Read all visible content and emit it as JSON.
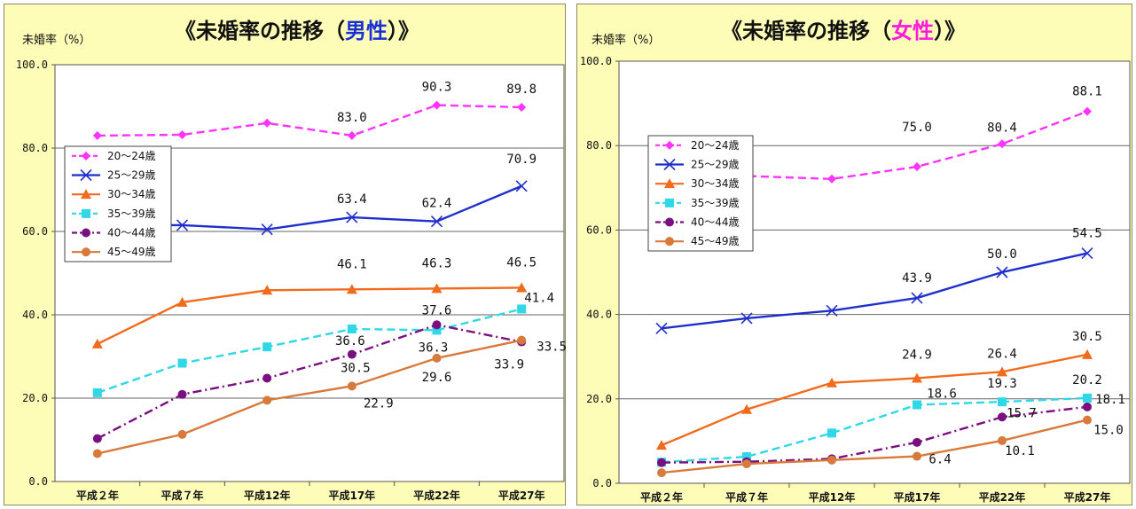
{
  "colors": {
    "panel_bg": "#fdfdb8",
    "plot_bg": "#ffffff",
    "male_word": "#1a2fd8",
    "female_word": "#ff1adc"
  },
  "chart_data": [
    {
      "type": "line",
      "title": {
        "prefix": "《未婚率の推移（",
        "highlight": "男性",
        "suffix": "）》"
      },
      "ylabel": "未婚率（%）",
      "ylim": [
        0,
        100
      ],
      "yticks": [
        "0.0",
        "20.0",
        "40.0",
        "60.0",
        "80.0",
        "100.0"
      ],
      "categories": [
        "平成２年",
        "平成７年",
        "平成12年",
        "平成17年",
        "平成22年",
        "平成27年"
      ],
      "grid": true,
      "legend_position": "left",
      "series": [
        {
          "name": "20～24歳",
          "color": "#ff33ff",
          "dash": "dashed",
          "marker": "diamond",
          "values": [
            83.0,
            83.2,
            86.0,
            83.0,
            90.3,
            89.8
          ],
          "labels": [
            "",
            "",
            "",
            "83.0",
            "90.3",
            "89.8"
          ]
        },
        {
          "name": "25～29歳",
          "color": "#1f2fcc",
          "dash": "solid",
          "marker": "x",
          "values": [
            61.5,
            61.5,
            60.5,
            63.4,
            62.4,
            70.9
          ],
          "labels": [
            "",
            "",
            "",
            "63.4",
            "62.4",
            "70.9"
          ]
        },
        {
          "name": "30～34歳",
          "color": "#f26b1d",
          "dash": "solid",
          "marker": "triangle",
          "values": [
            33.0,
            43.0,
            45.9,
            46.1,
            46.3,
            46.5
          ],
          "labels": [
            "",
            "",
            "",
            "46.1",
            "46.3",
            "46.5"
          ]
        },
        {
          "name": "35～39歳",
          "color": "#2ed8e6",
          "dash": "dashed",
          "marker": "square",
          "values": [
            21.3,
            28.4,
            32.3,
            36.6,
            36.3,
            41.4
          ],
          "labels": [
            "",
            "",
            "",
            "36.6",
            "36.3",
            "41.4"
          ]
        },
        {
          "name": "40～44歳",
          "color": "#7a0f80",
          "dash": "dashdot",
          "marker": "circle",
          "values": [
            10.3,
            20.9,
            24.8,
            30.5,
            37.6,
            33.5
          ],
          "labels": [
            "",
            "",
            "",
            "30.5",
            "37.6",
            "33.5"
          ]
        },
        {
          "name": "45～49歳",
          "color": "#d77a3b",
          "dash": "solid",
          "marker": "circle",
          "values": [
            6.7,
            11.3,
            19.5,
            22.9,
            29.6,
            33.9
          ],
          "labels": [
            "",
            "",
            "",
            "22.9",
            "29.6",
            "33.9"
          ]
        }
      ]
    },
    {
      "type": "line",
      "title": {
        "prefix": "《未婚率の推移（",
        "highlight": "女性",
        "suffix": "）》"
      },
      "ylabel": "未婚率（%）",
      "ylim": [
        0,
        100
      ],
      "yticks": [
        "0.0",
        "20.0",
        "40.0",
        "60.0",
        "80.0",
        "100.0"
      ],
      "categories": [
        "平成２年",
        "平成７年",
        "平成12年",
        "平成17年",
        "平成22年",
        "平成27年"
      ],
      "grid": true,
      "legend_position": "top-left",
      "series": [
        {
          "name": "20～24歳",
          "color": "#ff33ff",
          "dash": "dashed",
          "marker": "diamond",
          "values": [
            73.0,
            72.8,
            72.1,
            75.0,
            80.4,
            88.1
          ],
          "labels": [
            "",
            "",
            "",
            "75.0",
            "80.4",
            "88.1"
          ]
        },
        {
          "name": "25～29歳",
          "color": "#1f2fcc",
          "dash": "solid",
          "marker": "x",
          "values": [
            36.7,
            39.1,
            40.9,
            43.9,
            50.0,
            54.5
          ],
          "labels": [
            "",
            "",
            "",
            "43.9",
            "50.0",
            "54.5"
          ]
        },
        {
          "name": "30～34歳",
          "color": "#f26b1d",
          "dash": "solid",
          "marker": "triangle",
          "values": [
            9.0,
            17.5,
            23.8,
            24.9,
            26.4,
            30.5
          ],
          "labels": [
            "",
            "",
            "",
            "24.9",
            "26.4",
            "30.5"
          ]
        },
        {
          "name": "35～39歳",
          "color": "#2ed8e6",
          "dash": "dashed",
          "marker": "square",
          "values": [
            5.0,
            6.3,
            11.9,
            18.6,
            19.3,
            20.2
          ],
          "labels": [
            "",
            "",
            "",
            "18.6",
            "19.3",
            "20.2"
          ]
        },
        {
          "name": "40～44歳",
          "color": "#7a0f80",
          "dash": "dashdot",
          "marker": "circle",
          "values": [
            4.9,
            5.1,
            5.8,
            9.7,
            15.7,
            18.1
          ],
          "labels": [
            "",
            "",
            "",
            "",
            "15.7",
            "18.1"
          ]
        },
        {
          "name": "45～49歳",
          "color": "#d77a3b",
          "dash": "solid",
          "marker": "circle",
          "values": [
            2.5,
            4.6,
            5.5,
            6.4,
            10.1,
            15.0
          ],
          "labels": [
            "",
            "",
            "",
            "6.4",
            "10.1",
            "15.0"
          ]
        }
      ]
    }
  ]
}
